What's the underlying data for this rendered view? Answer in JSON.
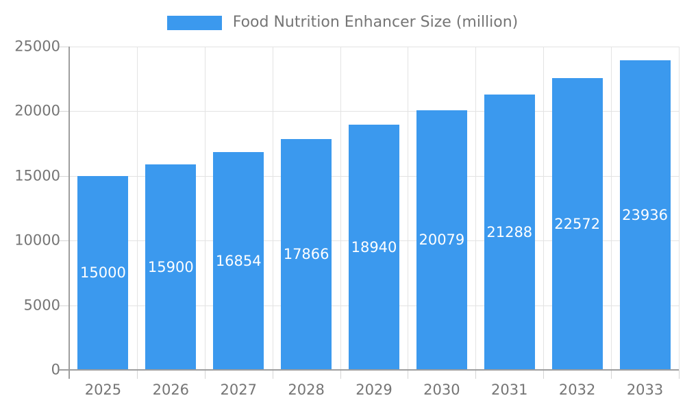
{
  "legend": {
    "label": "Food Nutrition Enhancer Size (million)"
  },
  "chart_data": {
    "type": "bar",
    "title": "Food Nutrition Enhancer Size (million)",
    "categories": [
      "2025",
      "2026",
      "2027",
      "2028",
      "2029",
      "2030",
      "2031",
      "2032",
      "2033"
    ],
    "values": [
      15000,
      15900,
      16854,
      17866,
      18940,
      20079,
      21288,
      22572,
      23936
    ],
    "xlabel": "",
    "ylabel": "",
    "ylim": [
      0,
      25000
    ],
    "yticks": [
      0,
      5000,
      10000,
      15000,
      20000,
      25000
    ],
    "grid": true,
    "legend_position": "top-center",
    "colors": {
      "bar": "#3b99ee",
      "value_label": "#ffffff",
      "axis": "#9e9e9e",
      "gridline": "#e3e3e3",
      "tick_mark": "#d4d4d4",
      "tick_text": "#757575"
    }
  }
}
